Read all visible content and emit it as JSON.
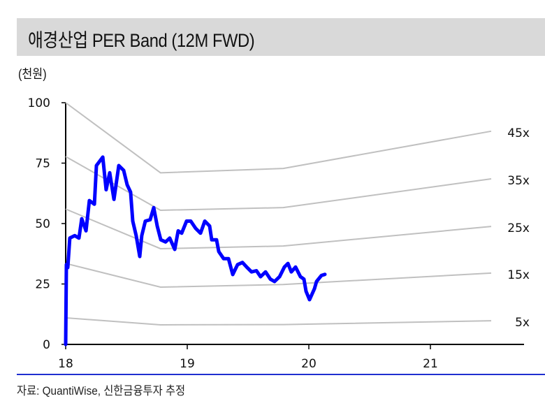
{
  "title": "애경산업 PER Band (12M FWD)",
  "unit_label": "(천원)",
  "source": "자료: QuantiWise, 신한금융투자 추정",
  "chart_data": {
    "type": "line",
    "title": "애경산업 PER Band (12M FWD)",
    "ylabel": "(천원)",
    "xlabel": "",
    "xlim": [
      18,
      21.77
    ],
    "ylim": [
      0,
      100
    ],
    "x_ticks": [
      18,
      19,
      20,
      21
    ],
    "x_tick_labels": [
      "18",
      "19",
      "20",
      "21"
    ],
    "y_ticks": [
      0,
      25,
      50,
      75,
      100
    ],
    "y_tick_labels": [
      "0",
      "25",
      "50",
      "75",
      "100"
    ],
    "grid": false,
    "colors": {
      "price": "#0000ff",
      "band": "#c0c0c0",
      "separator": "#1f2fd0",
      "title_bg": "#d9d9d9"
    },
    "bands": [
      {
        "name": "45x",
        "x": [
          18.0,
          18.78,
          19.79,
          21.5
        ],
        "y": [
          100,
          71,
          72.8,
          88.2
        ]
      },
      {
        "name": "35x",
        "x": [
          18.0,
          18.78,
          19.79,
          21.5
        ],
        "y": [
          77.7,
          55.5,
          56.6,
          68.5
        ]
      },
      {
        "name": "25x",
        "x": [
          18.0,
          18.78,
          19.79,
          21.5
        ],
        "y": [
          56,
          39.6,
          40.7,
          48.8
        ]
      },
      {
        "name": "15x",
        "x": [
          18.0,
          18.78,
          19.79,
          21.5
        ],
        "y": [
          33.5,
          23.7,
          24.8,
          29.5
        ]
      },
      {
        "name": "5x",
        "x": [
          18.0,
          18.78,
          19.79,
          21.5
        ],
        "y": [
          11,
          8.1,
          8.2,
          9.8
        ]
      }
    ],
    "price": {
      "x": [
        18.0,
        18.006,
        18.017,
        18.034,
        18.075,
        18.109,
        18.132,
        18.167,
        18.195,
        18.236,
        18.253,
        18.305,
        18.333,
        18.362,
        18.397,
        18.437,
        18.477,
        18.506,
        18.534,
        18.552,
        18.58,
        18.609,
        18.626,
        18.655,
        18.695,
        18.724,
        18.753,
        18.782,
        18.822,
        18.856,
        18.897,
        18.925,
        18.954,
        18.994,
        19.029,
        19.069,
        19.109,
        19.144,
        19.184,
        19.201,
        19.241,
        19.259,
        19.299,
        19.339,
        19.374,
        19.414,
        19.454,
        19.489,
        19.529,
        19.569,
        19.603,
        19.644,
        19.684,
        19.718,
        19.759,
        19.799,
        19.828,
        19.856,
        19.891,
        19.931,
        19.96,
        19.977,
        20.006,
        20.046,
        20.063,
        20.103,
        20.132
      ],
      "y": [
        0,
        33,
        31.8,
        44,
        45,
        44,
        52,
        47,
        59.5,
        58,
        74,
        77.5,
        64,
        71,
        60,
        74,
        72,
        66,
        63,
        51,
        45,
        36.4,
        45,
        51,
        51.6,
        56.6,
        49,
        43.3,
        42.4,
        44,
        39.3,
        47,
        46,
        51,
        51,
        48,
        46,
        51,
        49,
        43.3,
        43.3,
        38.4,
        35.5,
        35.5,
        28.9,
        33,
        33.9,
        32,
        30,
        30.5,
        28,
        30,
        27,
        26,
        28,
        32,
        33.5,
        30,
        32,
        28,
        27,
        22,
        18.5,
        23,
        26,
        28.5,
        29
      ]
    }
  }
}
